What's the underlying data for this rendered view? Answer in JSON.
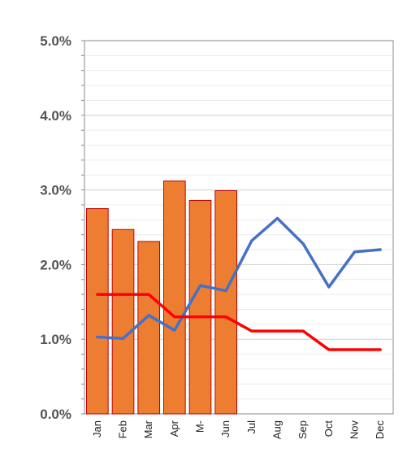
{
  "chart_data": {
    "type": "bar",
    "title": "",
    "xlabel": "",
    "ylabel": "",
    "categories": [
      "Jan",
      "Feb",
      "Mar",
      "Apr",
      "M-",
      "Jun",
      "Jul",
      "Aug",
      "Sep",
      "Oct",
      "Nov",
      "Dec"
    ],
    "ylim": [
      0,
      5.0
    ],
    "y_ticks": [
      "0.0%",
      "1.0%",
      "2.0%",
      "3.0%",
      "4.0%",
      "5.0%"
    ],
    "y_tick_values": [
      0,
      1,
      2,
      3,
      4,
      5
    ],
    "grid": true,
    "series": [
      {
        "type": "bar",
        "color": "#ED7D31",
        "stroke": "#C00000",
        "values": [
          2.75,
          2.47,
          2.31,
          3.12,
          2.86,
          2.99,
          null,
          null,
          null,
          null,
          null,
          null
        ]
      },
      {
        "type": "line",
        "color": "#4472C4",
        "values": [
          1.03,
          1.01,
          1.32,
          1.12,
          1.72,
          1.65,
          2.32,
          2.62,
          2.28,
          1.7,
          2.17,
          2.2
        ]
      },
      {
        "type": "line",
        "color": "#FF0000",
        "values": [
          1.6,
          1.6,
          1.6,
          1.3,
          1.3,
          1.3,
          1.11,
          1.11,
          1.11,
          0.86,
          0.86,
          0.86
        ]
      }
    ]
  }
}
